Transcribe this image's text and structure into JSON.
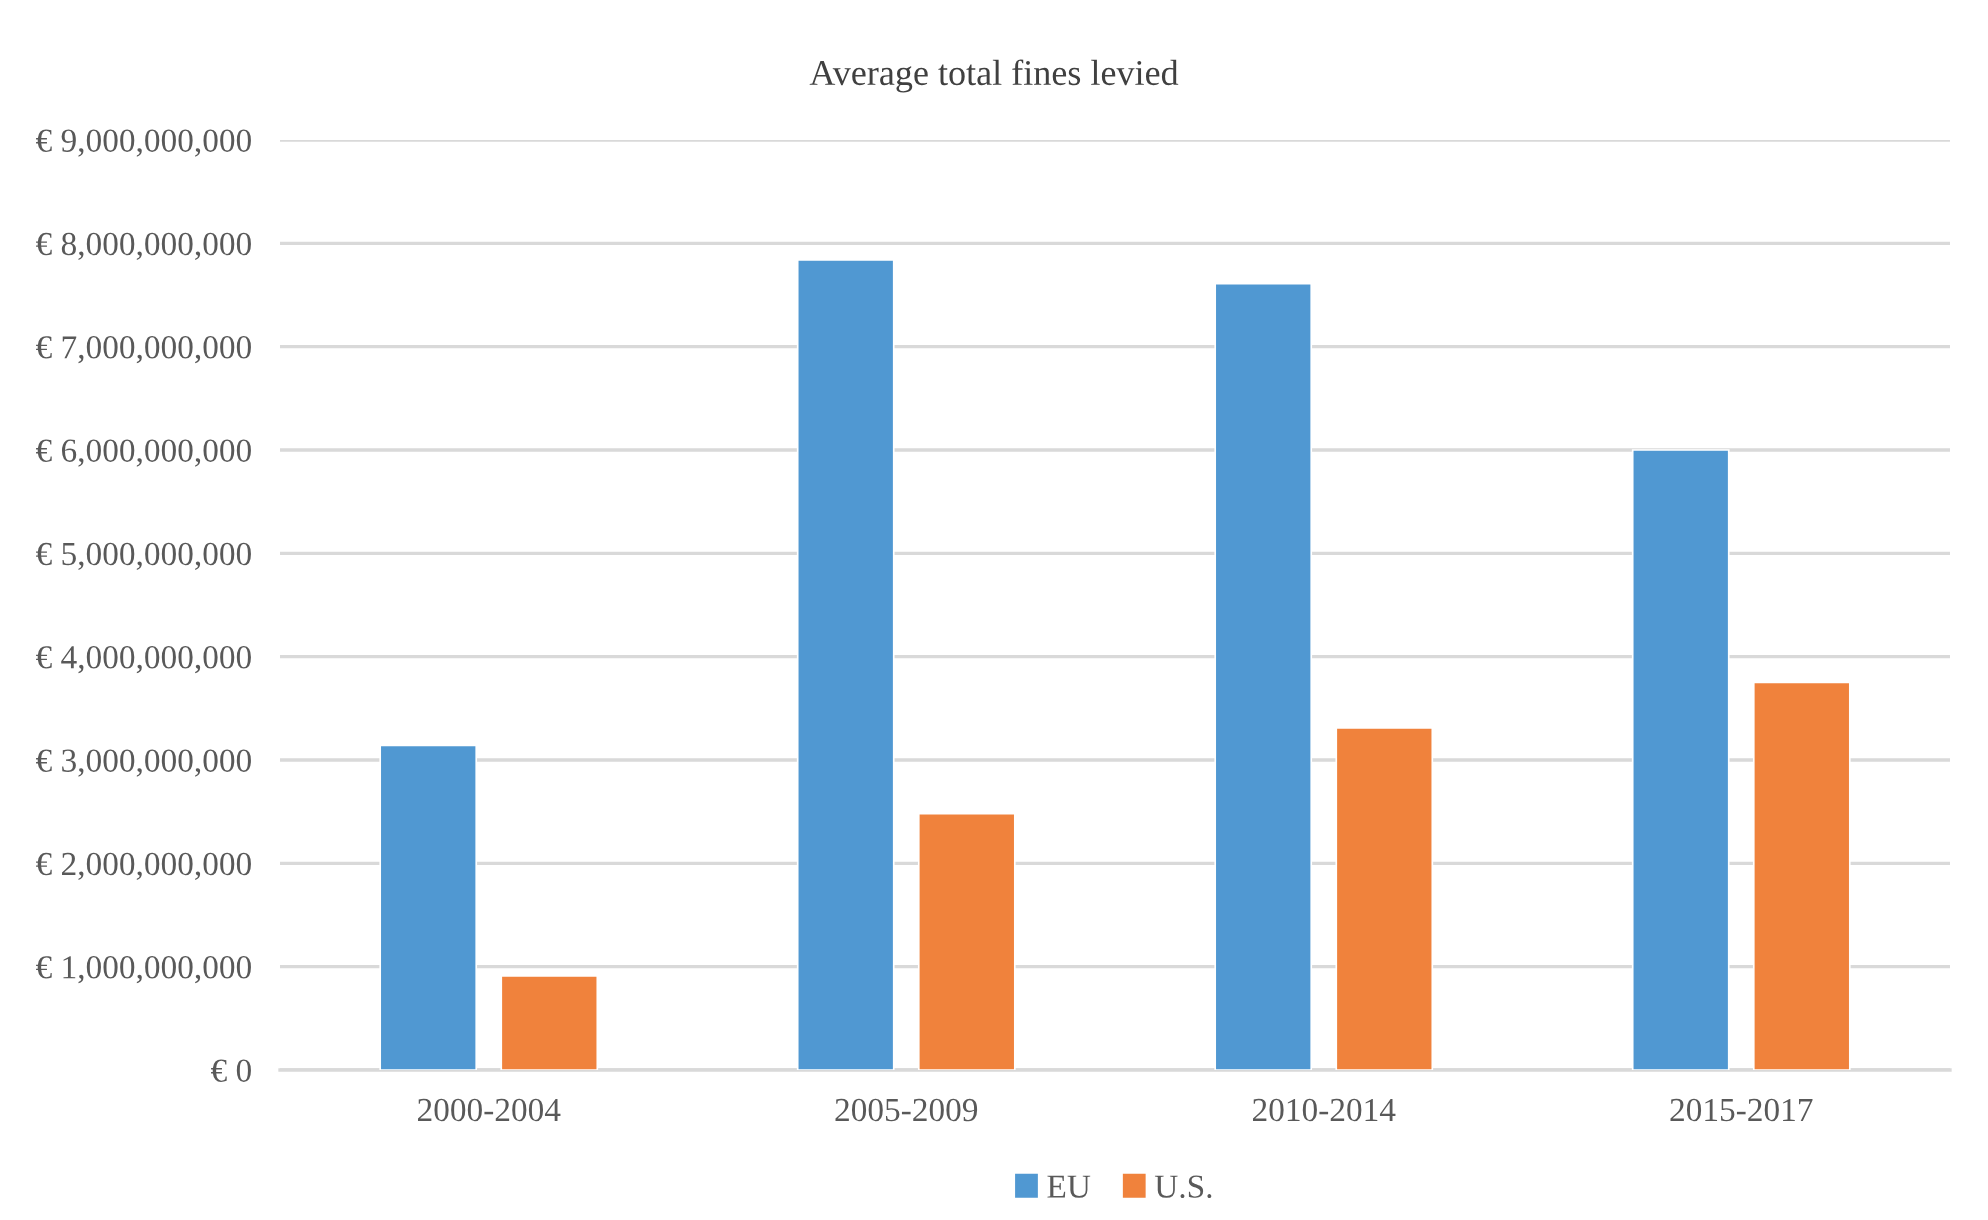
{
  "chart_data": {
    "type": "bar",
    "title": "Average total fines levied",
    "categories": [
      "2000-2004",
      "2005-2009",
      "2010-2014",
      "2015-2017"
    ],
    "series": [
      {
        "name": "EU",
        "color": "#5098d2",
        "values": [
          3140000000.0,
          7840000000.0,
          7610000000.0,
          6000000000.0
        ]
      },
      {
        "name": "U.S.",
        "color": "#f0823c",
        "values": [
          910000000.0,
          2480000000.0,
          3310000000.0,
          3750000000.0
        ]
      }
    ],
    "ylim": [
      0,
      9000000000.0
    ],
    "yticks": [
      {
        "value": 0,
        "label": "€ 0"
      },
      {
        "value": 1000000000.0,
        "label": "€ 1,000,000,000"
      },
      {
        "value": 2000000000.0,
        "label": "€ 2,000,000,000"
      },
      {
        "value": 3000000000.0,
        "label": "€ 3,000,000,000"
      },
      {
        "value": 4000000000.0,
        "label": "€ 4,000,000,000"
      },
      {
        "value": 5000000000.0,
        "label": "€ 5,000,000,000"
      },
      {
        "value": 6000000000.0,
        "label": "€ 6,000,000,000"
      },
      {
        "value": 7000000000.0,
        "label": "€ 7,000,000,000"
      },
      {
        "value": 8000000000.0,
        "label": "€ 8,000,000,000"
      },
      {
        "value": 9000000000.0,
        "label": "€ 9,000,000,000"
      }
    ],
    "grid": "y",
    "legend": "bottom"
  }
}
